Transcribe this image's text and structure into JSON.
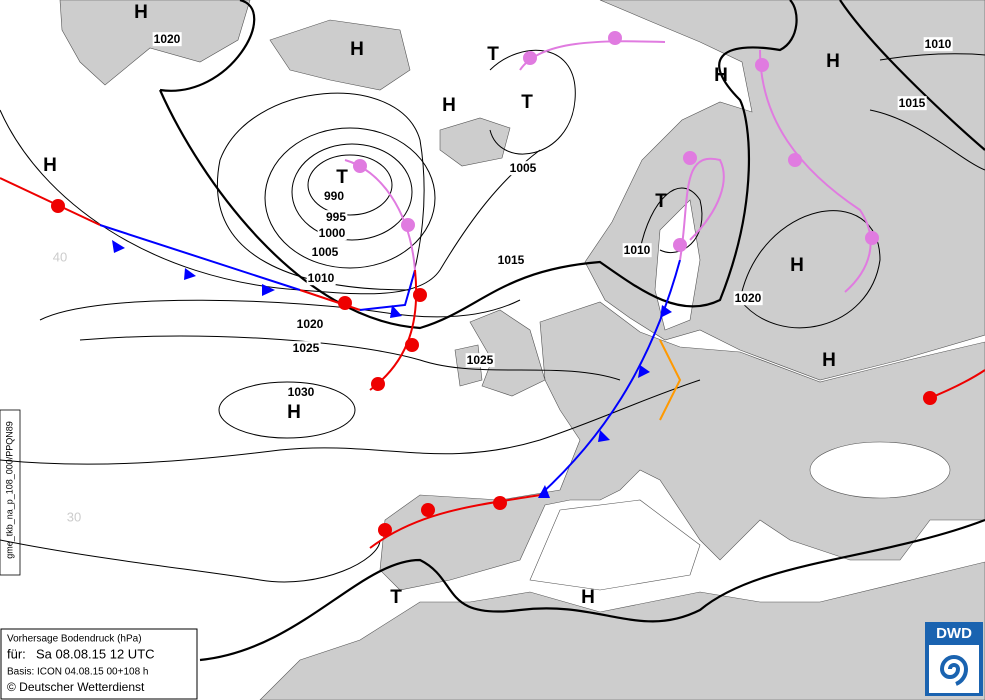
{
  "map": {
    "pressure_labels": [
      "1020",
      "1010",
      "1015",
      "990",
      "995",
      "1000",
      "1005",
      "1010",
      "1015",
      "1010",
      "1020",
      "1020",
      "1025",
      "1025",
      "1030",
      "1005"
    ],
    "centers": [
      "H",
      "H",
      "T",
      "H",
      "H",
      "H",
      "T",
      "H",
      "T",
      "T",
      "H",
      "H",
      "H",
      "T",
      "H"
    ],
    "latitude_labels": [
      "40",
      "30"
    ]
  },
  "legend": {
    "title": "Vorhersage Bodendruck (hPa)",
    "for_label": "für:",
    "valid": "Sa 08.08.15  12 UTC",
    "basis": "Basis: ICON  04.08.15 00+108 h",
    "copyright": "© Deutscher Wetterdienst"
  },
  "product_id": "gme_tkb_na_p_108_000/PPQN89",
  "logo": "DWD"
}
